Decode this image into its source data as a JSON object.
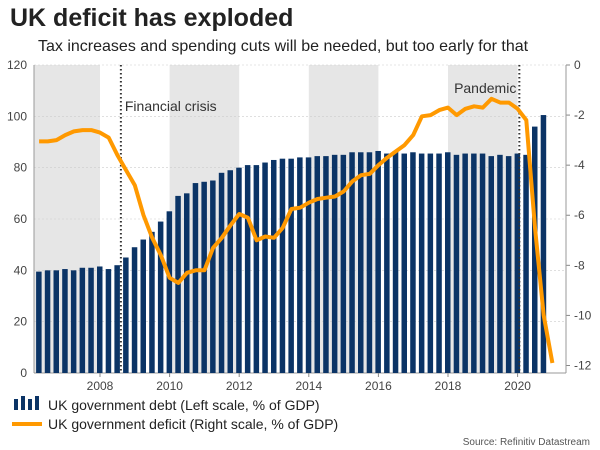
{
  "header": {
    "title": "UK deficit has exploded",
    "subtitle": "Tax increases and spending cuts will be needed, but too early for that"
  },
  "source": "Source: Refinitiv Datastream",
  "colors": {
    "debt": "#0b3466",
    "deficit": "#ff9900",
    "shade": "#e6e6e6"
  },
  "chart_data": {
    "type": "bar+line",
    "title": "UK deficit has exploded",
    "x_ticks": [
      "2008",
      "2010",
      "2012",
      "2014",
      "2016",
      "2018",
      "2020"
    ],
    "left_axis": {
      "ylim": [
        0,
        120
      ],
      "ticks": [
        "0",
        "20",
        "40",
        "60",
        "80",
        "100",
        "120"
      ]
    },
    "right_axis": {
      "ylim": [
        -12.3,
        0
      ],
      "ticks": [
        "0",
        "-2",
        "-4",
        "-6",
        "-8",
        "-10",
        "-12"
      ]
    },
    "shaded_periods": [
      [
        2006.1,
        2008
      ],
      [
        2010,
        2012
      ],
      [
        2014,
        2016
      ],
      [
        2018,
        2020
      ]
    ],
    "annotations": [
      {
        "label": "Financial crisis",
        "x": 2008.6
      },
      {
        "label": "Pandemic",
        "x": 2020.05
      }
    ],
    "series": [
      {
        "name": "UK government debt (Left scale, % of GDP)",
        "type": "bar",
        "axis": "left",
        "x_start": 2006.25,
        "step": 0.25,
        "values": [
          39.5,
          40,
          40,
          40.5,
          40,
          41,
          41,
          41.5,
          40.5,
          42,
          45,
          49,
          52,
          55,
          59,
          63,
          69,
          70,
          74,
          74.5,
          75,
          78,
          79,
          80,
          81,
          81,
          82,
          83,
          83.5,
          83.5,
          84,
          84,
          84.5,
          84.5,
          85,
          85,
          86,
          86,
          86,
          86.5,
          85.5,
          86.5,
          85.5,
          86,
          85.5,
          85.5,
          85.5,
          86,
          85,
          85.5,
          85.5,
          85.5,
          84.5,
          85,
          84.5,
          85.5,
          85,
          96,
          100.5
        ]
      },
      {
        "name": "UK government deficit (Right scale, % of GDP)",
        "type": "line",
        "axis": "right",
        "x_start": 2006.25,
        "step": 0.25,
        "values": [
          -3.05,
          -3.05,
          -3.0,
          -2.8,
          -2.65,
          -2.6,
          -2.6,
          -2.7,
          -2.9,
          -3.6,
          -4.2,
          -4.8,
          -6.0,
          -6.9,
          -7.6,
          -8.5,
          -8.7,
          -8.3,
          -8.2,
          -8.2,
          -7.3,
          -6.9,
          -6.4,
          -5.95,
          -6.1,
          -7.0,
          -6.85,
          -6.9,
          -6.5,
          -5.75,
          -5.7,
          -5.5,
          -5.35,
          -5.3,
          -5.25,
          -5.05,
          -4.65,
          -4.4,
          -4.35,
          -4.0,
          -3.7,
          -3.45,
          -3.2,
          -2.8,
          -2.05,
          -2.0,
          -1.8,
          -1.7,
          -2.0,
          -1.75,
          -1.65,
          -1.7,
          -1.35,
          -1.5,
          -1.5,
          -1.75,
          -2.2,
          -6.5,
          -10.0,
          -11.9
        ]
      }
    ]
  }
}
